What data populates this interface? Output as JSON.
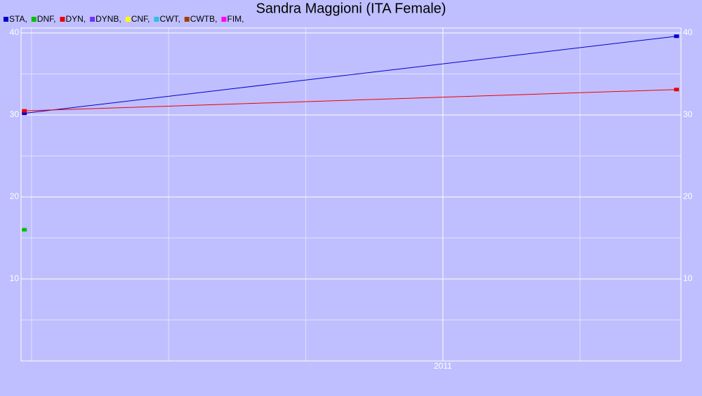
{
  "chart_data": {
    "type": "line",
    "title": "Sandra Maggioni (ITA Female)",
    "x": [
      2010.237,
      2011.426
    ],
    "xlim": [
      2010.231,
      2011.434
    ],
    "xticks": [
      {
        "value": 2011,
        "label": "2011"
      }
    ],
    "xgrid_minor": [
      2010.25,
      2010.5,
      2010.75,
      2011.25
    ],
    "ylim": [
      0,
      40.6
    ],
    "yticks": [
      10,
      20,
      30,
      40
    ],
    "ygrid_minor": [
      5,
      15,
      25,
      35
    ],
    "y2lim": [
      0,
      40.6
    ],
    "y2ticks": [
      10,
      20,
      30,
      40
    ],
    "grid": true,
    "legend": "top-left",
    "series": [
      {
        "name": "STA,",
        "color": "#0000cc",
        "values": [
          30.2,
          39.6
        ]
      },
      {
        "name": "DNF,",
        "color": "#00c000",
        "values": [
          16,
          null
        ]
      },
      {
        "name": "DYN,",
        "color": "#ee0000",
        "values": [
          30.5,
          33.1
        ]
      },
      {
        "name": "DYNB,",
        "color": "#7030ff",
        "values": [
          null,
          null
        ]
      },
      {
        "name": "CNF,",
        "color": "#ffff00",
        "values": [
          null,
          null
        ]
      },
      {
        "name": "CWT,",
        "color": "#30c0e0",
        "values": [
          null,
          null
        ]
      },
      {
        "name": "CWTB,",
        "color": "#a04000",
        "values": [
          null,
          null
        ]
      },
      {
        "name": "FIM,",
        "color": "#ff00ff",
        "values": [
          null,
          null
        ]
      }
    ]
  }
}
